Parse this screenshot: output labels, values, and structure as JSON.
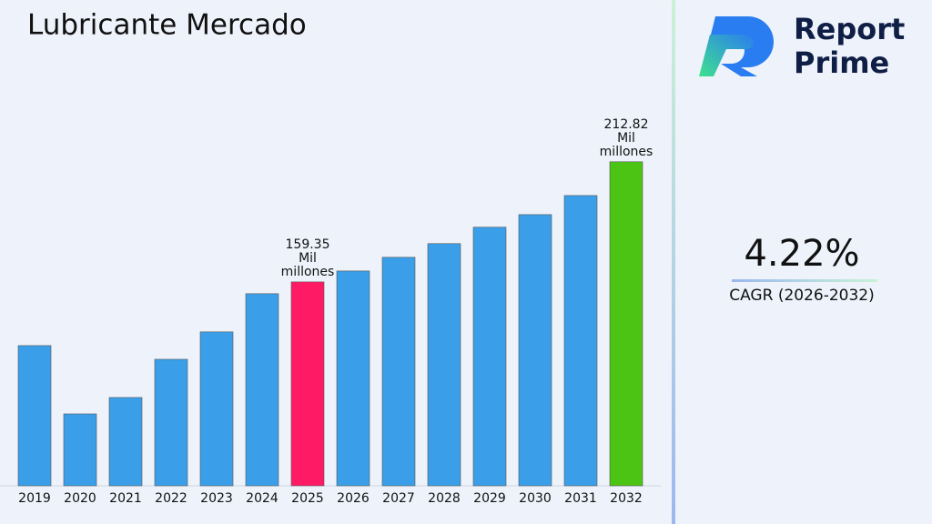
{
  "chart_data": {
    "type": "bar",
    "title": "Lubricante Mercado",
    "categories": [
      "2019",
      "2020",
      "2021",
      "2022",
      "2023",
      "2024",
      "2025",
      "2026",
      "2027",
      "2028",
      "2029",
      "2030",
      "2031",
      "2032"
    ],
    "values": [
      131.0,
      100.6,
      107.9,
      124.9,
      137.1,
      154.1,
      159.35,
      164.2,
      170.3,
      176.4,
      183.7,
      189.3,
      197.8,
      212.82
    ],
    "value_labels": [
      null,
      null,
      null,
      null,
      null,
      null,
      "159.35 Mil millones",
      null,
      null,
      null,
      null,
      null,
      null,
      "212.82 Mil millones"
    ],
    "colors": [
      "#3a9fe8",
      "#3a9fe8",
      "#3a9fe8",
      "#3a9fe8",
      "#3a9fe8",
      "#3a9fe8",
      "#ff1a66",
      "#3a9fe8",
      "#3a9fe8",
      "#3a9fe8",
      "#3a9fe8",
      "#3a9fe8",
      "#3a9fe8",
      "#4cc414"
    ],
    "ylim": [
      68.6,
      250
    ],
    "grid": false
  },
  "sidebar": {
    "brand": [
      "Report",
      "Prime"
    ],
    "cagr": "4.22%",
    "cagr_label": "CAGR (2026-2032)"
  }
}
